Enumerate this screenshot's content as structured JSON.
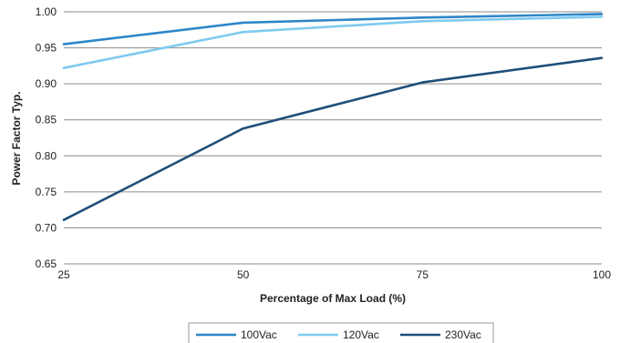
{
  "chart_data": {
    "type": "line",
    "title": "",
    "xlabel": "Percentage of Max Load (%)",
    "ylabel": "Power Factor Typ.",
    "x": [
      25,
      50,
      75,
      100
    ],
    "xlim": [
      25,
      100
    ],
    "ylim": [
      0.65,
      1.0
    ],
    "x_ticks": [
      "25",
      "50",
      "75",
      "100"
    ],
    "y_ticks": [
      "0.65",
      "0.70",
      "0.75",
      "0.80",
      "0.85",
      "0.90",
      "0.95",
      "1.00"
    ],
    "grid": "horizontal",
    "legend_position": "bottom",
    "series": [
      {
        "name": "100Vac",
        "color": "#2e86c8",
        "values": [
          0.955,
          0.985,
          0.992,
          0.997
        ]
      },
      {
        "name": "120Vac",
        "color": "#7fcaf0",
        "values": [
          0.922,
          0.972,
          0.987,
          0.993
        ]
      },
      {
        "name": "230Vac",
        "color": "#1f4e79",
        "values": [
          0.711,
          0.838,
          0.902,
          0.936
        ]
      }
    ]
  }
}
